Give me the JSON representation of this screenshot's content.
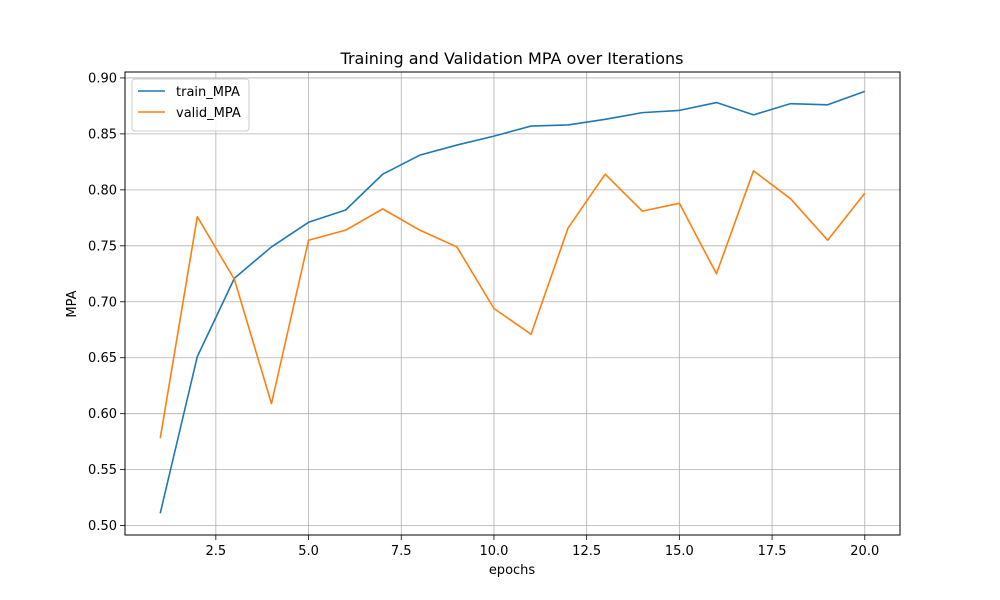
{
  "chart_data": {
    "type": "line",
    "title": "Training and Validation MPA over Iterations",
    "xlabel": "epochs",
    "ylabel": "MPA",
    "x": [
      1,
      2,
      3,
      4,
      5,
      6,
      7,
      8,
      9,
      10,
      11,
      12,
      13,
      14,
      15,
      16,
      17,
      18,
      19,
      20
    ],
    "xlim": [
      0.05,
      20.95
    ],
    "ylim": [
      0.4916,
      0.9053
    ],
    "xticks": [
      2.5,
      5.0,
      7.5,
      10.0,
      12.5,
      15.0,
      17.5,
      20.0
    ],
    "xtick_labels": [
      "2.5",
      "5.0",
      "7.5",
      "10.0",
      "12.5",
      "15.0",
      "17.5",
      "20.0"
    ],
    "yticks": [
      0.5,
      0.55,
      0.6,
      0.65,
      0.7,
      0.75,
      0.8,
      0.85,
      0.9
    ],
    "ytick_labels": [
      "0.50",
      "0.55",
      "0.60",
      "0.65",
      "0.70",
      "0.75",
      "0.80",
      "0.85",
      "0.90"
    ],
    "grid": true,
    "legend_position": "top-left",
    "series": [
      {
        "name": "train_MPA",
        "color": "#1f77b4",
        "values": [
          0.511,
          0.651,
          0.721,
          0.749,
          0.771,
          0.782,
          0.814,
          0.831,
          0.84,
          0.848,
          0.857,
          0.858,
          0.863,
          0.869,
          0.871,
          0.878,
          0.867,
          0.877,
          0.876,
          0.888
        ]
      },
      {
        "name": "valid_MPA",
        "color": "#ff7f0e",
        "values": [
          0.578,
          0.776,
          0.72,
          0.609,
          0.755,
          0.764,
          0.783,
          0.764,
          0.749,
          0.694,
          0.671,
          0.766,
          0.814,
          0.781,
          0.788,
          0.725,
          0.817,
          0.792,
          0.755,
          0.797
        ]
      }
    ]
  }
}
